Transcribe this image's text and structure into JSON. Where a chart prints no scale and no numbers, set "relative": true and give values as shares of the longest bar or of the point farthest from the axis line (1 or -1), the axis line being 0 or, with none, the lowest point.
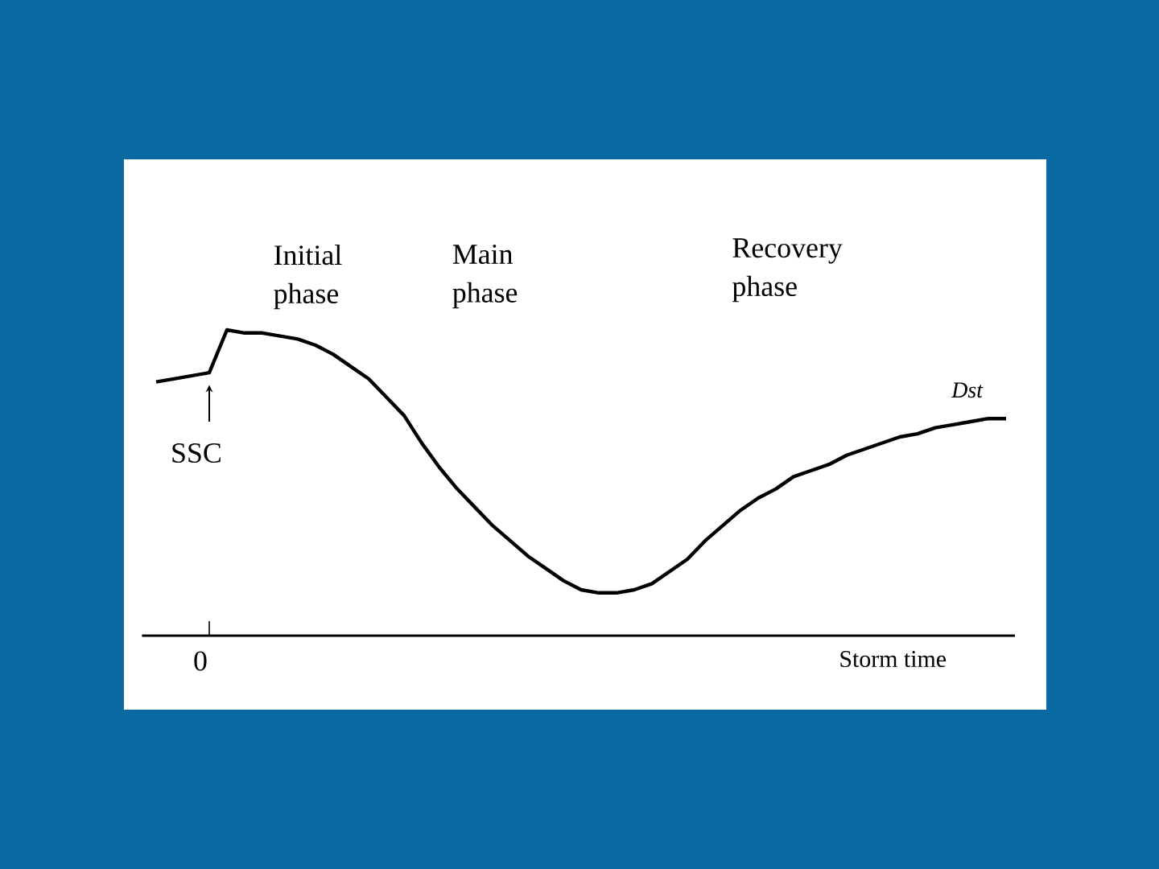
{
  "chart_data": {
    "type": "line",
    "relative": true,
    "xlabel": "Storm time",
    "categories": [
      null,
      null,
      null,
      null,
      null,
      null,
      null,
      null,
      null,
      null,
      null,
      null,
      null,
      null,
      null,
      null,
      null,
      null,
      null,
      null,
      null,
      null,
      null,
      null,
      null,
      null,
      null,
      null,
      null,
      null,
      null,
      null,
      null,
      null,
      null,
      null,
      null,
      null,
      null,
      null,
      null,
      null,
      null,
      null,
      null,
      null,
      null,
      null,
      null
    ],
    "series": [
      {
        "name": "Dst",
        "color": "#000000",
        "values": [
          0.83,
          0.84,
          0.85,
          0.86,
          1.0,
          0.99,
          0.99,
          0.98,
          0.97,
          0.95,
          0.92,
          0.88,
          0.84,
          0.78,
          0.72,
          0.63,
          0.55,
          0.48,
          0.42,
          0.36,
          0.31,
          0.26,
          0.22,
          0.18,
          0.15,
          0.14,
          0.14,
          0.15,
          0.17,
          0.21,
          0.25,
          0.31,
          0.36,
          0.41,
          0.45,
          0.48,
          0.52,
          0.54,
          0.56,
          0.59,
          0.61,
          0.63,
          0.65,
          0.66,
          0.68,
          0.69,
          0.7,
          0.71,
          0.71
        ]
      }
    ],
    "annotations": [
      "Initial phase",
      "Main phase",
      "Recovery phase",
      "SSC",
      "0"
    ],
    "marker": "none",
    "line_style": "solid"
  }
}
